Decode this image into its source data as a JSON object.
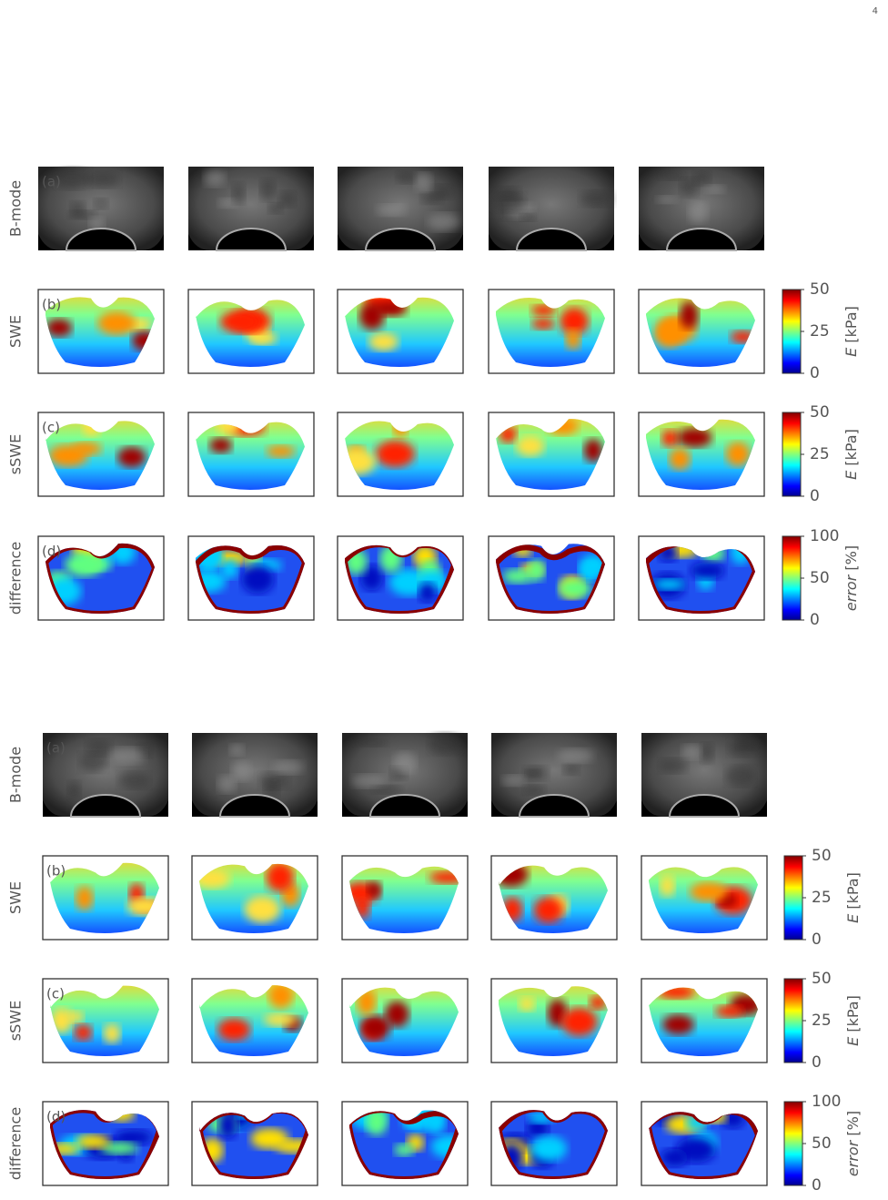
{
  "page_number": "4",
  "figures": [
    {
      "rows": [
        {
          "label": "B-mode",
          "panel": "(a)"
        },
        {
          "label": "SWE",
          "panel": "(b)",
          "colorbar": {
            "ticks": [
              0,
              25,
              50
            ],
            "symbol": "E",
            "unit": "[kPa]"
          }
        },
        {
          "label": "sSWE",
          "panel": "(c)",
          "colorbar": {
            "ticks": [
              0,
              25,
              50
            ],
            "symbol": "E",
            "unit": "[kPa]"
          }
        },
        {
          "label": "difference",
          "panel": "(d)",
          "colorbar": {
            "ticks": [
              0,
              50,
              100
            ],
            "symbol": "error",
            "unit": "[%]"
          }
        }
      ]
    },
    {
      "rows": [
        {
          "label": "B-mode",
          "panel": "(a)"
        },
        {
          "label": "SWE",
          "panel": "(b)",
          "colorbar": {
            "ticks": [
              0,
              25,
              50
            ],
            "symbol": "E",
            "unit": "[kPa]"
          }
        },
        {
          "label": "sSWE",
          "panel": "(c)",
          "colorbar": {
            "ticks": [
              0,
              25,
              50
            ],
            "symbol": "E",
            "unit": "[kPa]"
          }
        },
        {
          "label": "difference",
          "panel": "(d)",
          "colorbar": {
            "ticks": [
              0,
              50,
              100
            ],
            "symbol": "error",
            "unit": "[%]"
          }
        }
      ]
    }
  ]
}
